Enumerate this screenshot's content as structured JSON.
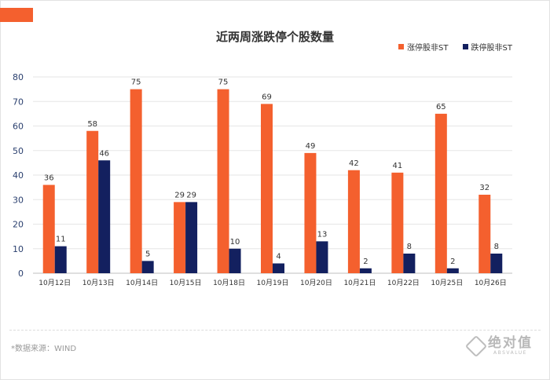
{
  "chart_data": {
    "type": "bar",
    "title": "近两周涨跌停个股数量",
    "categories": [
      "10月12日",
      "10月13日",
      "10月14日",
      "10月15日",
      "10月18日",
      "10月19日",
      "10月20日",
      "10月21日",
      "10月22日",
      "10月25日",
      "10月26日"
    ],
    "series": [
      {
        "name": "涨停股非ST",
        "color": "#f4602e",
        "values": [
          36,
          58,
          75,
          29,
          75,
          69,
          49,
          42,
          41,
          65,
          32
        ]
      },
      {
        "name": "跌停股非ST",
        "color": "#13205f",
        "values": [
          11,
          46,
          5,
          29,
          10,
          4,
          13,
          2,
          8,
          2,
          8
        ]
      }
    ],
    "ylim": [
      0,
      80
    ],
    "yticks": [
      0,
      10,
      20,
      30,
      40,
      50,
      60,
      70,
      80
    ],
    "grid": true,
    "legend_position": "top-right"
  },
  "footer": {
    "source": "*数据来源：WIND",
    "logo_name": "绝对值",
    "logo_sub": "ABSVALUE"
  }
}
